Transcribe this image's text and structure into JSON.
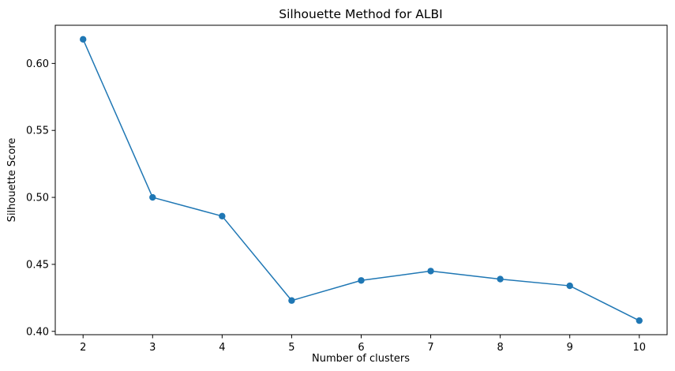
{
  "chart_data": {
    "type": "line",
    "title": "Silhouette Method for ALBI",
    "xlabel": "Number of clusters",
    "ylabel": "Silhouette Score",
    "x": [
      2,
      3,
      4,
      5,
      6,
      7,
      8,
      9,
      10
    ],
    "series": [
      {
        "values": [
          0.618,
          0.5,
          0.486,
          0.423,
          0.438,
          0.445,
          0.439,
          0.434,
          0.408
        ],
        "color": "#1f77b4",
        "marker": "circle"
      }
    ],
    "xticks": [
      2,
      3,
      4,
      5,
      6,
      7,
      8,
      9,
      10
    ],
    "yticks": [
      0.4,
      0.45,
      0.5,
      0.55,
      0.6
    ],
    "ytick_labels": [
      "0.40",
      "0.45",
      "0.50",
      "0.55",
      "0.60"
    ],
    "xlim": [
      1.6,
      10.4
    ],
    "ylim": [
      0.3975,
      0.6285
    ],
    "grid": false,
    "legend": "none"
  }
}
